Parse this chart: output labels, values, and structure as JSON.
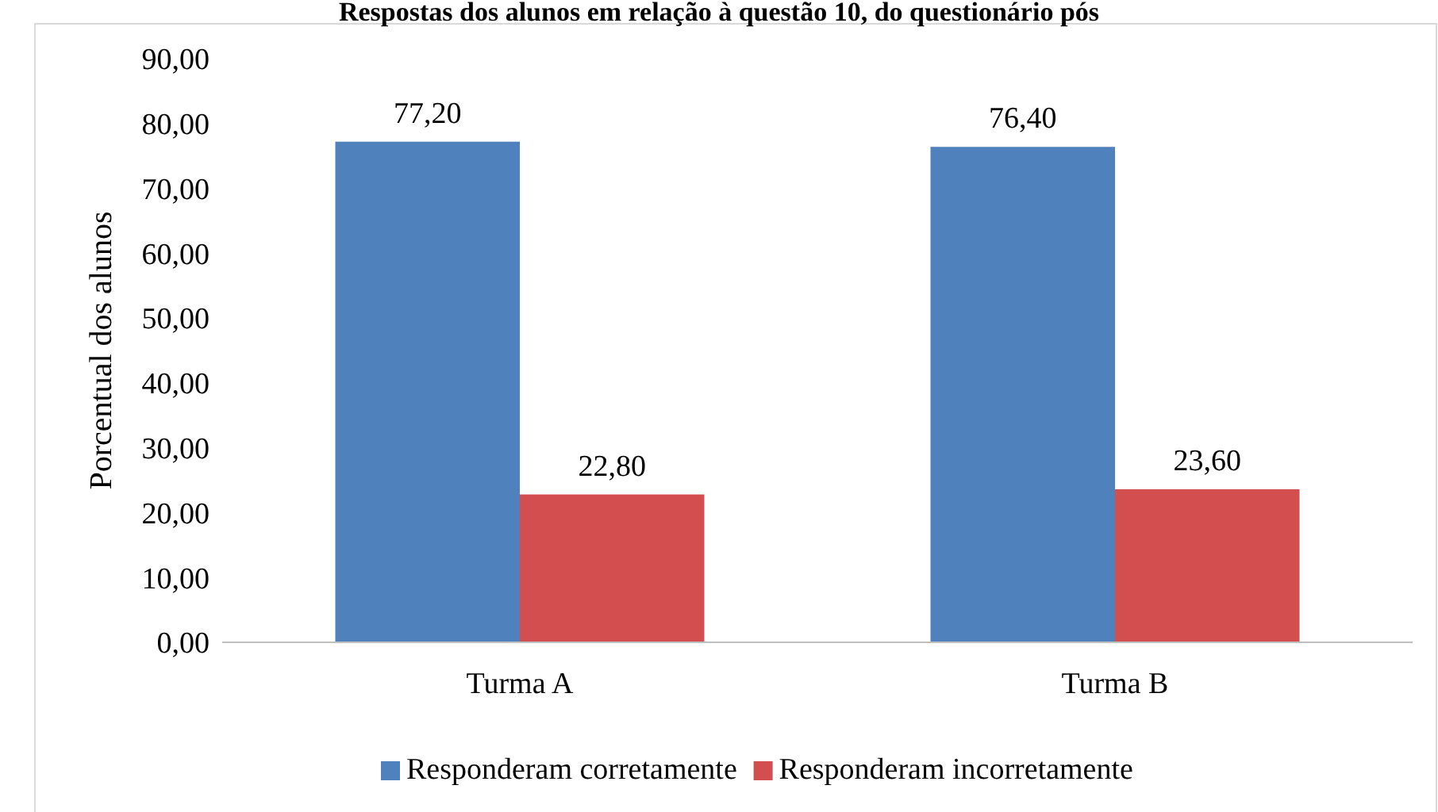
{
  "chart_data": {
    "type": "bar",
    "title": "Respostas dos alunos em relação à questão 10, do questionário pós",
    "ylabel": "Porcentual dos alunos",
    "categories": [
      "Turma A",
      "Turma B"
    ],
    "series": [
      {
        "name": "Responderam corretamente",
        "color": "#4f81bd",
        "values": [
          77.2,
          76.4
        ],
        "value_labels": [
          "77,20",
          "76,40"
        ]
      },
      {
        "name": "Responderam incorretamente",
        "color": "#d34f4f",
        "values": [
          22.8,
          23.6
        ],
        "value_labels": [
          "22,80",
          "23,60"
        ]
      }
    ],
    "ylim": [
      0,
      90
    ],
    "yticks": [
      {
        "value": 0,
        "label": "0,00"
      },
      {
        "value": 10,
        "label": "10,00"
      },
      {
        "value": 20,
        "label": "20,00"
      },
      {
        "value": 30,
        "label": "30,00"
      },
      {
        "value": 40,
        "label": "40,00"
      },
      {
        "value": 50,
        "label": "50,00"
      },
      {
        "value": 60,
        "label": "60,00"
      },
      {
        "value": 70,
        "label": "70,00"
      },
      {
        "value": 80,
        "label": "80,00"
      },
      {
        "value": 90,
        "label": "90,00"
      }
    ],
    "legend": "bottom",
    "grid": false
  }
}
